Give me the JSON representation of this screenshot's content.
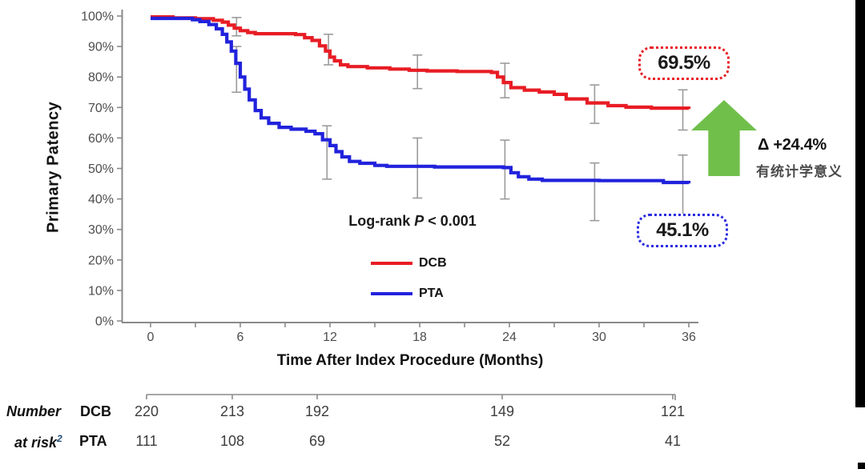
{
  "chart_data": {
    "type": "line",
    "subtype": "kaplan-meier-step",
    "title": "",
    "xlabel": "Time After Index Procedure (Months)",
    "ylabel": "Primary Patency",
    "xlim": [
      0,
      36
    ],
    "ylim": [
      0,
      100
    ],
    "x_major_ticks": [
      0,
      6,
      12,
      18,
      24,
      30,
      36
    ],
    "x_minor_step": 3,
    "y_ticks": [
      0,
      10,
      20,
      30,
      40,
      50,
      60,
      70,
      80,
      90,
      100
    ],
    "y_tick_suffix": "%",
    "grid": false,
    "legend_position": "inside-bottom-center",
    "series": [
      {
        "name": "DCB",
        "color": "#e81c24",
        "final_value": 69.5,
        "steps": [
          [
            0,
            99.7
          ],
          [
            1.5,
            99.4
          ],
          [
            3,
            99.1
          ],
          [
            4.2,
            98.6
          ],
          [
            4.8,
            98
          ],
          [
            5.2,
            97
          ],
          [
            5.6,
            96
          ],
          [
            6,
            95.2
          ],
          [
            6.5,
            94.6
          ],
          [
            7,
            94.2
          ],
          [
            9.7,
            93.9
          ],
          [
            10.3,
            92.9
          ],
          [
            10.8,
            92
          ],
          [
            11.3,
            90.2
          ],
          [
            11.7,
            88.5
          ],
          [
            12,
            86.5
          ],
          [
            12.3,
            85.3
          ],
          [
            12.7,
            84
          ],
          [
            13.2,
            83.4
          ],
          [
            14.5,
            83
          ],
          [
            16,
            82.6
          ],
          [
            17.3,
            82.2
          ],
          [
            18.5,
            82
          ],
          [
            20.5,
            81.8
          ],
          [
            22.8,
            81.5
          ],
          [
            23.2,
            80
          ],
          [
            23.6,
            78.2
          ],
          [
            24.1,
            76.5
          ],
          [
            25,
            75.7
          ],
          [
            26,
            75.1
          ],
          [
            27,
            74.3
          ],
          [
            27.8,
            72.8
          ],
          [
            29.2,
            71.5
          ],
          [
            30.6,
            70.6
          ],
          [
            31.8,
            70.1
          ],
          [
            33.5,
            69.8
          ],
          [
            36,
            69.5
          ]
        ],
        "error_bars": [
          {
            "t": 5.75,
            "lo": 93.5,
            "hi": 99.5
          },
          {
            "t": 11.9,
            "lo": 84.0,
            "hi": 94.0
          },
          {
            "t": 17.85,
            "lo": 76.2,
            "hi": 87.2
          },
          {
            "t": 23.7,
            "lo": 73.2,
            "hi": 84.5
          },
          {
            "t": 29.7,
            "lo": 64.8,
            "hi": 77.4
          },
          {
            "t": 35.6,
            "lo": 62.6,
            "hi": 75.8
          }
        ]
      },
      {
        "name": "PTA",
        "color": "#2122dc",
        "final_value": 45.1,
        "steps": [
          [
            0,
            99.2
          ],
          [
            2.8,
            98.8
          ],
          [
            3.3,
            98.2
          ],
          [
            3.9,
            97.2
          ],
          [
            4.4,
            95.8
          ],
          [
            4.8,
            94
          ],
          [
            5.1,
            91.5
          ],
          [
            5.4,
            88.5
          ],
          [
            5.7,
            84.5
          ],
          [
            6,
            80
          ],
          [
            6.3,
            76
          ],
          [
            6.6,
            72.5
          ],
          [
            7,
            69
          ],
          [
            7.4,
            66.6
          ],
          [
            7.9,
            64.8
          ],
          [
            8.6,
            63.5
          ],
          [
            9.4,
            62.9
          ],
          [
            10.4,
            62.2
          ],
          [
            11,
            61.4
          ],
          [
            11.5,
            59.4
          ],
          [
            12,
            57.5
          ],
          [
            12.4,
            55.5
          ],
          [
            12.8,
            53.8
          ],
          [
            13.3,
            52.3
          ],
          [
            14,
            51.7
          ],
          [
            15,
            51
          ],
          [
            15.8,
            50.7
          ],
          [
            19,
            50.5
          ],
          [
            23.6,
            50.3
          ],
          [
            24.1,
            48.6
          ],
          [
            24.6,
            47.3
          ],
          [
            25.3,
            46.5
          ],
          [
            26.2,
            46.1
          ],
          [
            30,
            46
          ],
          [
            34.3,
            45.4
          ],
          [
            36,
            45.1
          ]
        ],
        "error_bars": [
          {
            "t": 5.75,
            "lo": 75.0,
            "hi": 90.0
          },
          {
            "t": 11.8,
            "lo": 46.5,
            "hi": 64.0
          },
          {
            "t": 17.85,
            "lo": 40.3,
            "hi": 60.0
          },
          {
            "t": 23.7,
            "lo": 40.0,
            "hi": 59.3
          },
          {
            "t": 29.7,
            "lo": 32.9,
            "hi": 51.8
          },
          {
            "t": 35.6,
            "lo": 33.5,
            "hi": 54.4
          }
        ]
      }
    ]
  },
  "titles": {
    "ylabel": "Primary Patency",
    "xlabel": "Time After Index Procedure (Months)"
  },
  "logrank": {
    "prefix": "Log-rank ",
    "p": "P",
    "rest": " < 0.001"
  },
  "legend": {
    "dcb": "DCB",
    "pta": "PTA"
  },
  "annotations": {
    "dcb_final": "69.5%",
    "pta_final": "45.1%",
    "delta": "Δ +24.4%",
    "delta_note": "有统计学意义"
  },
  "colors": {
    "dcb": "#e81c24",
    "pta": "#2122dc",
    "arrow_green": "#70bf4b",
    "error_bar": "#9b9b9b",
    "axis": "#8a8a8a",
    "tick_label": "#4d4d4d"
  },
  "risk_table": {
    "row1_label": "Number",
    "row2_label": "at risk",
    "row2_sup": "2",
    "rows": [
      {
        "name": "DCB",
        "values": [
          "220",
          "213",
          "192",
          "149",
          "121"
        ]
      },
      {
        "name": "PTA",
        "values": [
          "111",
          "108",
          "69",
          "52",
          "41"
        ]
      }
    ]
  }
}
